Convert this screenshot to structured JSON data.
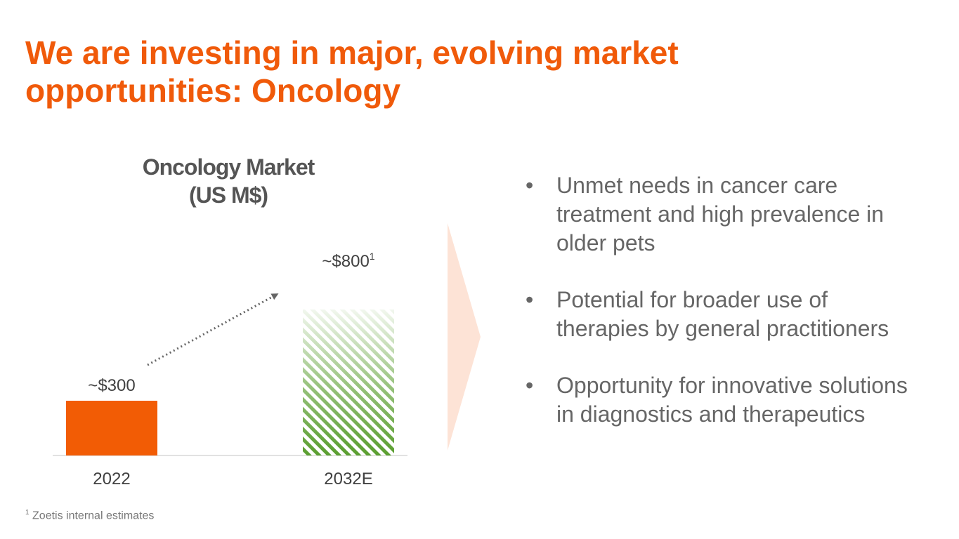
{
  "title": {
    "line1": "We are investing in major, evolving market",
    "line2": "opportunities: Oncology"
  },
  "chart_data": {
    "type": "bar",
    "title_line1": "Oncology Market",
    "title_line2": "(US M$)",
    "categories": [
      "2022",
      "2032E"
    ],
    "values": [
      300,
      800
    ],
    "labels": [
      "~$300",
      "~$800"
    ],
    "label_superscripts": [
      "",
      "1"
    ],
    "bar_styles": [
      "solid",
      "hatched"
    ],
    "colors": {
      "solid": "#f25c05",
      "hatch": "#5a9e2f",
      "arrow": "#666666",
      "baseline": "#d9d9d9",
      "chevron": "#fde3d6"
    },
    "ylim": [
      0,
      1000
    ],
    "grid": false
  },
  "bullets": [
    "Unmet needs in cancer care treatment and high prevalence in older pets",
    "Potential for broader use of therapies by general practitioners",
    "Opportunity for innovative solutions in diagnostics and therapeutics"
  ],
  "footnote": {
    "marker": "1",
    "text": "Zoetis internal estimates"
  }
}
